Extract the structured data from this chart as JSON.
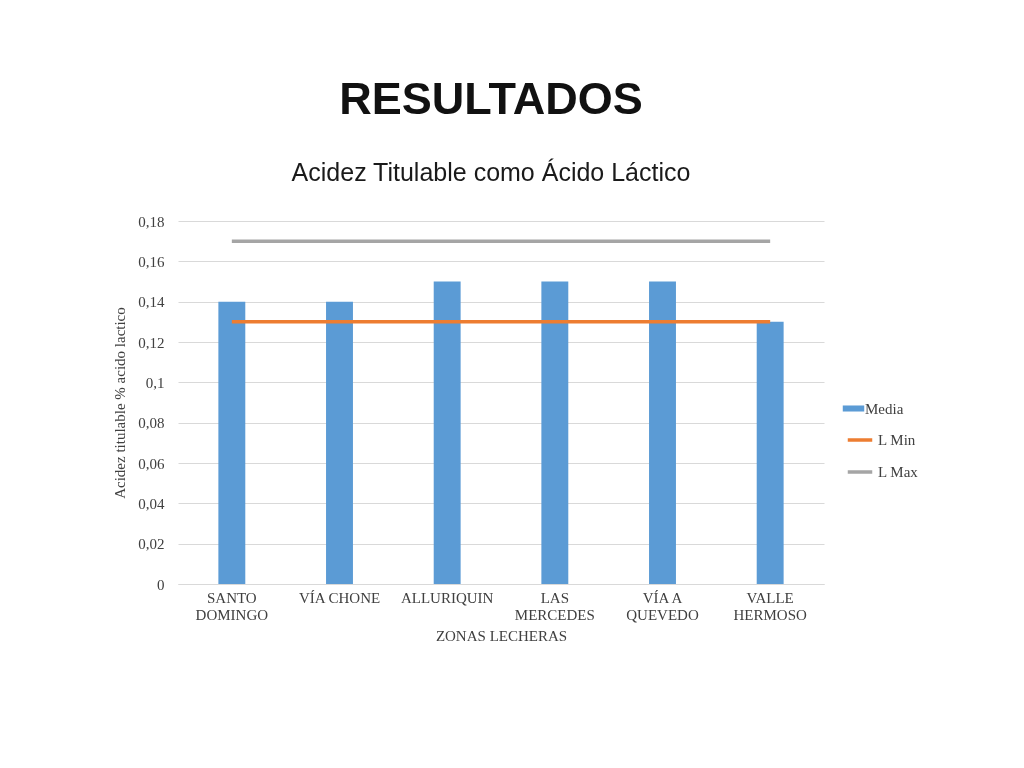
{
  "chart_data": {
    "type": "bar",
    "title": "RESULTADOS",
    "subtitle": "Acidez Titulable como Ácido Láctico",
    "xlabel": "ZONAS LECHERAS",
    "ylabel": "Acidez titulable % acido lactico",
    "categories": [
      "SANTO\nDOMINGO",
      "VÍA CHONE",
      "ALLURIQUIN",
      "LAS\nMERCEDES",
      "VÍA A\nQUEVEDO",
      "VALLE\nHERMOSO"
    ],
    "series": [
      {
        "name": "Media",
        "color": "#5b9bd5",
        "values": [
          0.14,
          0.14,
          0.15,
          0.15,
          0.15,
          0.13
        ]
      },
      {
        "name": "L Min",
        "type": "line",
        "color": "#ed7d31",
        "values": [
          0.13,
          0.13,
          0.13,
          0.13,
          0.13,
          0.13
        ]
      },
      {
        "name": "L Max",
        "type": "line",
        "color": "#a5a5a5",
        "values": [
          0.17,
          0.17,
          0.17,
          0.17,
          0.17,
          0.17
        ]
      }
    ],
    "ylim": [
      0,
      0.18
    ],
    "yticks": [
      0,
      {
        "value": 0.02,
        "label": "0,02"
      },
      {
        "value": 0.04,
        "label": "0,04"
      },
      {
        "value": 0.06,
        "label": "0,06"
      },
      {
        "value": 0.08,
        "label": "0,08"
      },
      {
        "value": 0.1,
        "label": "0,1"
      },
      {
        "value": 0.12,
        "label": "0,12"
      },
      {
        "value": 0.14,
        "label": "0,14"
      },
      {
        "value": 0.16,
        "label": "0,16"
      },
      {
        "value": 0.18,
        "label": "0,18"
      }
    ],
    "grid": "y",
    "legend": "right"
  }
}
